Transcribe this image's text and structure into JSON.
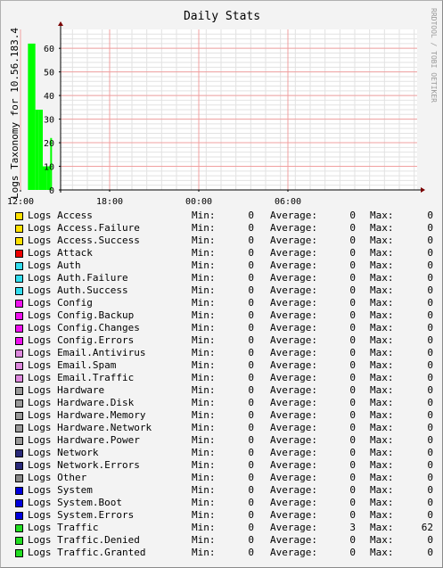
{
  "chart_data": {
    "type": "area",
    "title": "Daily Stats",
    "ylabel": "Logs Taxonomy for 10.56.183.4",
    "watermark": "RRDTOOL / TOBI OETIKER",
    "x_ticks": [
      "18:00",
      "00:00",
      "06:00",
      "12:00"
    ],
    "y_ticks": [
      0,
      10,
      20,
      30,
      40,
      50,
      60
    ],
    "ylim": [
      0,
      68
    ],
    "grid": true,
    "series": [
      {
        "name": "Logs Traffic",
        "color": "#00ff00",
        "points": [
          {
            "x": "12:30",
            "y": 62
          },
          {
            "x": "12:45",
            "y": 62
          },
          {
            "x": "13:00",
            "y": 34
          },
          {
            "x": "13:15",
            "y": 34
          },
          {
            "x": "13:30",
            "y": 10
          },
          {
            "x": "13:45",
            "y": 10
          },
          {
            "x": "14:00",
            "y": 22
          }
        ]
      }
    ]
  },
  "legend_labels": {
    "min": "Min:",
    "avg": "Average:",
    "max": "Max:"
  },
  "legend": [
    {
      "name": "Logs Access",
      "color": "#ffe000",
      "min": "0",
      "avg": "0",
      "max": "0"
    },
    {
      "name": "Logs Access.Failure",
      "color": "#ffe000",
      "min": "0",
      "avg": "0",
      "max": "0"
    },
    {
      "name": "Logs Access.Success",
      "color": "#ffe000",
      "min": "0",
      "avg": "0",
      "max": "0"
    },
    {
      "name": "Logs Attack",
      "color": "#ee0000",
      "min": "0",
      "avg": "0",
      "max": "0"
    },
    {
      "name": "Logs Auth",
      "color": "#33ddee",
      "min": "0",
      "avg": "0",
      "max": "0"
    },
    {
      "name": "Logs Auth.Failure",
      "color": "#33ddee",
      "min": "0",
      "avg": "0",
      "max": "0"
    },
    {
      "name": "Logs Auth.Success",
      "color": "#33ddee",
      "min": "0",
      "avg": "0",
      "max": "0"
    },
    {
      "name": "Logs Config",
      "color": "#ee11ee",
      "min": "0",
      "avg": "0",
      "max": "0"
    },
    {
      "name": "Logs Config.Backup",
      "color": "#ee11ee",
      "min": "0",
      "avg": "0",
      "max": "0"
    },
    {
      "name": "Logs Config.Changes",
      "color": "#ee11ee",
      "min": "0",
      "avg": "0",
      "max": "0"
    },
    {
      "name": "Logs Config.Errors",
      "color": "#ee11ee",
      "min": "0",
      "avg": "0",
      "max": "0"
    },
    {
      "name": "Logs Email.Antivirus",
      "color": "#dd88dd",
      "min": "0",
      "avg": "0",
      "max": "0"
    },
    {
      "name": "Logs Email.Spam",
      "color": "#dd88dd",
      "min": "0",
      "avg": "0",
      "max": "0"
    },
    {
      "name": "Logs Email.Traffic",
      "color": "#dd88dd",
      "min": "0",
      "avg": "0",
      "max": "0"
    },
    {
      "name": "Logs Hardware",
      "color": "#999999",
      "min": "0",
      "avg": "0",
      "max": "0"
    },
    {
      "name": "Logs Hardware.Disk",
      "color": "#999999",
      "min": "0",
      "avg": "0",
      "max": "0"
    },
    {
      "name": "Logs Hardware.Memory",
      "color": "#999999",
      "min": "0",
      "avg": "0",
      "max": "0"
    },
    {
      "name": "Logs Hardware.Network",
      "color": "#999999",
      "min": "0",
      "avg": "0",
      "max": "0"
    },
    {
      "name": "Logs Hardware.Power",
      "color": "#999999",
      "min": "0",
      "avg": "0",
      "max": "0"
    },
    {
      "name": "Logs Network",
      "color": "#2a2a7a",
      "min": "0",
      "avg": "0",
      "max": "0"
    },
    {
      "name": "Logs Network.Errors",
      "color": "#2a2a7a",
      "min": "0",
      "avg": "0",
      "max": "0"
    },
    {
      "name": "Logs Other",
      "color": "#888888",
      "min": "0",
      "avg": "0",
      "max": "0"
    },
    {
      "name": "Logs System",
      "color": "#0000dd",
      "min": "0",
      "avg": "0",
      "max": "0"
    },
    {
      "name": "Logs System.Boot",
      "color": "#0000dd",
      "min": "0",
      "avg": "0",
      "max": "0"
    },
    {
      "name": "Logs System.Errors",
      "color": "#0000dd",
      "min": "0",
      "avg": "0",
      "max": "0"
    },
    {
      "name": "Logs Traffic",
      "color": "#22dd22",
      "min": "0",
      "avg": "3",
      "max": "62"
    },
    {
      "name": "Logs Traffic.Denied",
      "color": "#22dd22",
      "min": "0",
      "avg": "0",
      "max": "0"
    },
    {
      "name": "Logs Traffic.Granted",
      "color": "#22dd22",
      "min": "0",
      "avg": "0",
      "max": "0"
    }
  ]
}
